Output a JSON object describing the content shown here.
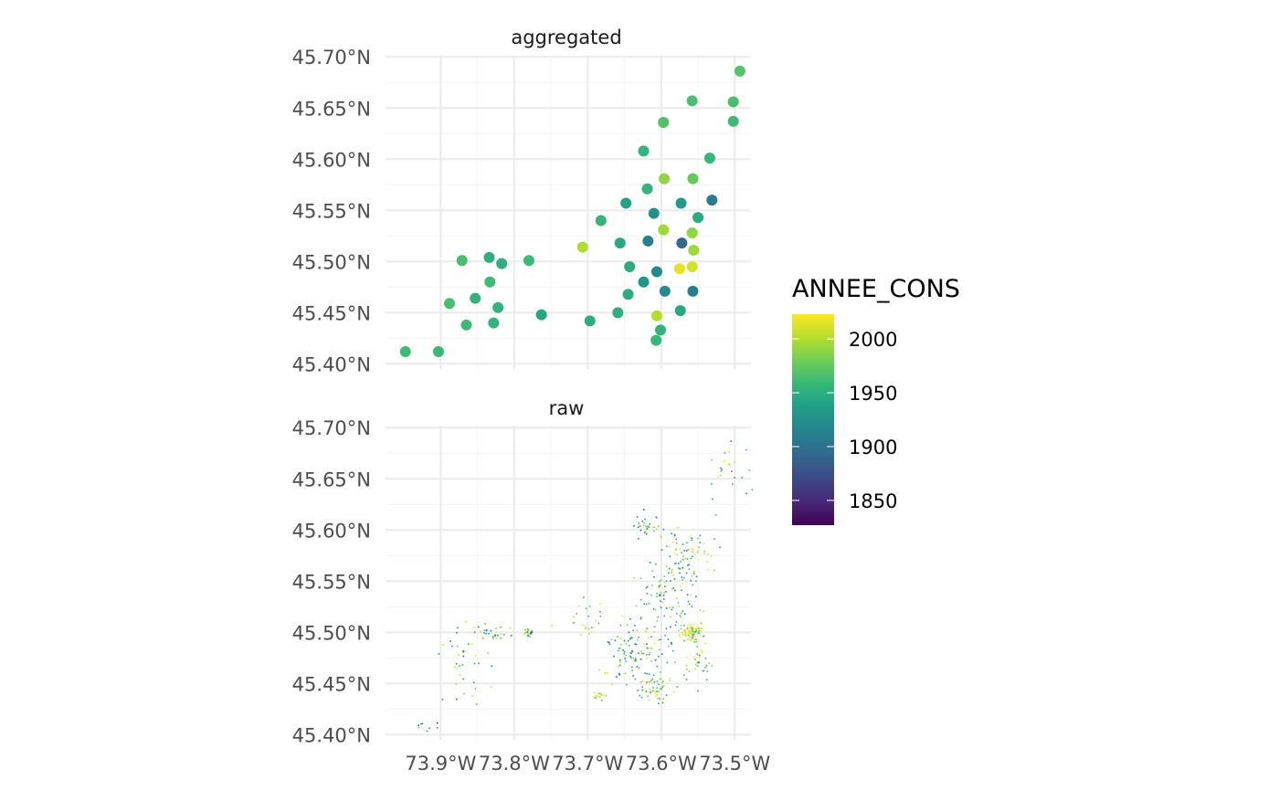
{
  "chart_data": {
    "type": "scatter",
    "panels": [
      {
        "name": "aggregated",
        "point_style": "large",
        "points": [
          [
            -73.493,
            45.686,
            1970
          ],
          [
            -73.558,
            45.657,
            1965
          ],
          [
            -73.502,
            45.656,
            1965
          ],
          [
            -73.597,
            45.636,
            1968
          ],
          [
            -73.502,
            45.637,
            1960
          ],
          [
            -73.624,
            45.608,
            1955
          ],
          [
            -73.534,
            45.601,
            1958
          ],
          [
            -73.596,
            45.581,
            1990
          ],
          [
            -73.557,
            45.581,
            1975
          ],
          [
            -73.619,
            45.571,
            1955
          ],
          [
            -73.531,
            45.56,
            1910
          ],
          [
            -73.648,
            45.557,
            1940
          ],
          [
            -73.573,
            45.557,
            1935
          ],
          [
            -73.61,
            45.547,
            1925
          ],
          [
            -73.55,
            45.543,
            1948
          ],
          [
            -73.682,
            45.54,
            1958
          ],
          [
            -73.597,
            45.531,
            1995
          ],
          [
            -73.558,
            45.528,
            1990
          ],
          [
            -73.618,
            45.52,
            1915
          ],
          [
            -73.572,
            45.518,
            1895
          ],
          [
            -73.656,
            45.518,
            1945
          ],
          [
            -73.707,
            45.514,
            2000
          ],
          [
            -73.556,
            45.511,
            1995
          ],
          [
            -73.834,
            45.504,
            1950
          ],
          [
            -73.871,
            45.501,
            1965
          ],
          [
            -73.78,
            45.501,
            1960
          ],
          [
            -73.817,
            45.498,
            1950
          ],
          [
            -73.558,
            45.495,
            2010
          ],
          [
            -73.575,
            45.493,
            2015
          ],
          [
            -73.643,
            45.495,
            1948
          ],
          [
            -73.606,
            45.49,
            1920
          ],
          [
            -73.833,
            45.48,
            1962
          ],
          [
            -73.624,
            45.48,
            1930
          ],
          [
            -73.595,
            45.471,
            1920
          ],
          [
            -73.557,
            45.471,
            1910
          ],
          [
            -73.645,
            45.468,
            1950
          ],
          [
            -73.853,
            45.464,
            1955
          ],
          [
            -73.888,
            45.459,
            1965
          ],
          [
            -73.822,
            45.455,
            1955
          ],
          [
            -73.659,
            45.45,
            1950
          ],
          [
            -73.574,
            45.452,
            1945
          ],
          [
            -73.606,
            45.447,
            2000
          ],
          [
            -73.763,
            45.448,
            1945
          ],
          [
            -73.697,
            45.442,
            1950
          ],
          [
            -73.865,
            45.438,
            1960
          ],
          [
            -73.828,
            45.44,
            1955
          ],
          [
            -73.601,
            45.433,
            1955
          ],
          [
            -73.607,
            45.423,
            1958
          ],
          [
            -73.948,
            45.412,
            1962
          ],
          [
            -73.903,
            45.412,
            1960
          ]
        ]
      },
      {
        "name": "raw",
        "point_style": "tiny",
        "seed": 42,
        "clusters": [
          [
            -73.56,
            45.5,
            0.012,
            0.007,
            95,
            2010
          ],
          [
            -73.575,
            45.56,
            0.025,
            0.04,
            80,
            1970
          ],
          [
            -73.64,
            45.48,
            0.03,
            0.025,
            90,
            1955
          ],
          [
            -73.6,
            45.52,
            0.03,
            0.04,
            80,
            1960
          ],
          [
            -73.61,
            45.445,
            0.02,
            0.012,
            50,
            1975
          ],
          [
            -73.688,
            45.438,
            0.012,
            0.004,
            15,
            2005
          ],
          [
            -73.865,
            45.48,
            0.03,
            0.04,
            45,
            1960
          ],
          [
            -73.83,
            45.5,
            0.025,
            0.005,
            20,
            1958
          ],
          [
            -73.782,
            45.5,
            0.005,
            0.003,
            25,
            1960
          ],
          [
            -73.62,
            45.605,
            0.015,
            0.01,
            30,
            1950
          ],
          [
            -73.555,
            45.58,
            0.03,
            0.02,
            40,
            1990
          ],
          [
            -73.51,
            45.65,
            0.02,
            0.03,
            25,
            1975
          ],
          [
            -73.7,
            45.515,
            0.03,
            0.015,
            25,
            1995
          ],
          [
            -73.93,
            45.41,
            0.02,
            0.005,
            8,
            1920
          ],
          [
            -73.55,
            45.47,
            0.015,
            0.02,
            35,
            1990
          ]
        ]
      }
    ],
    "x_ticks": [
      "73.9°W",
      "73.8°W",
      "73.7°W",
      "73.6°W",
      "73.5°W"
    ],
    "x_tick_values": [
      -73.9,
      -73.8,
      -73.7,
      -73.6,
      -73.5
    ],
    "y_ticks": [
      "45.40°N",
      "45.45°N",
      "45.50°N",
      "45.55°N",
      "45.60°N",
      "45.65°N",
      "45.70°N"
    ],
    "y_tick_values": [
      45.4,
      45.45,
      45.5,
      45.55,
      45.6,
      45.65,
      45.7
    ],
    "xlim": [
      -73.975,
      -73.478
    ],
    "ylim": [
      45.395,
      45.702
    ],
    "grid": true,
    "legend": {
      "title": "ANNEE_CONS",
      "labels": [
        "2000",
        "1950",
        "1900",
        "1850"
      ],
      "values": [
        2000,
        1950,
        1900,
        1850
      ],
      "range": [
        1827,
        2023
      ],
      "placement": "right",
      "palette": [
        "#440154",
        "#482878",
        "#3e4989",
        "#31688e",
        "#26828e",
        "#1f9e89",
        "#35b779",
        "#6ece58",
        "#b5de2b",
        "#fde725"
      ]
    }
  }
}
